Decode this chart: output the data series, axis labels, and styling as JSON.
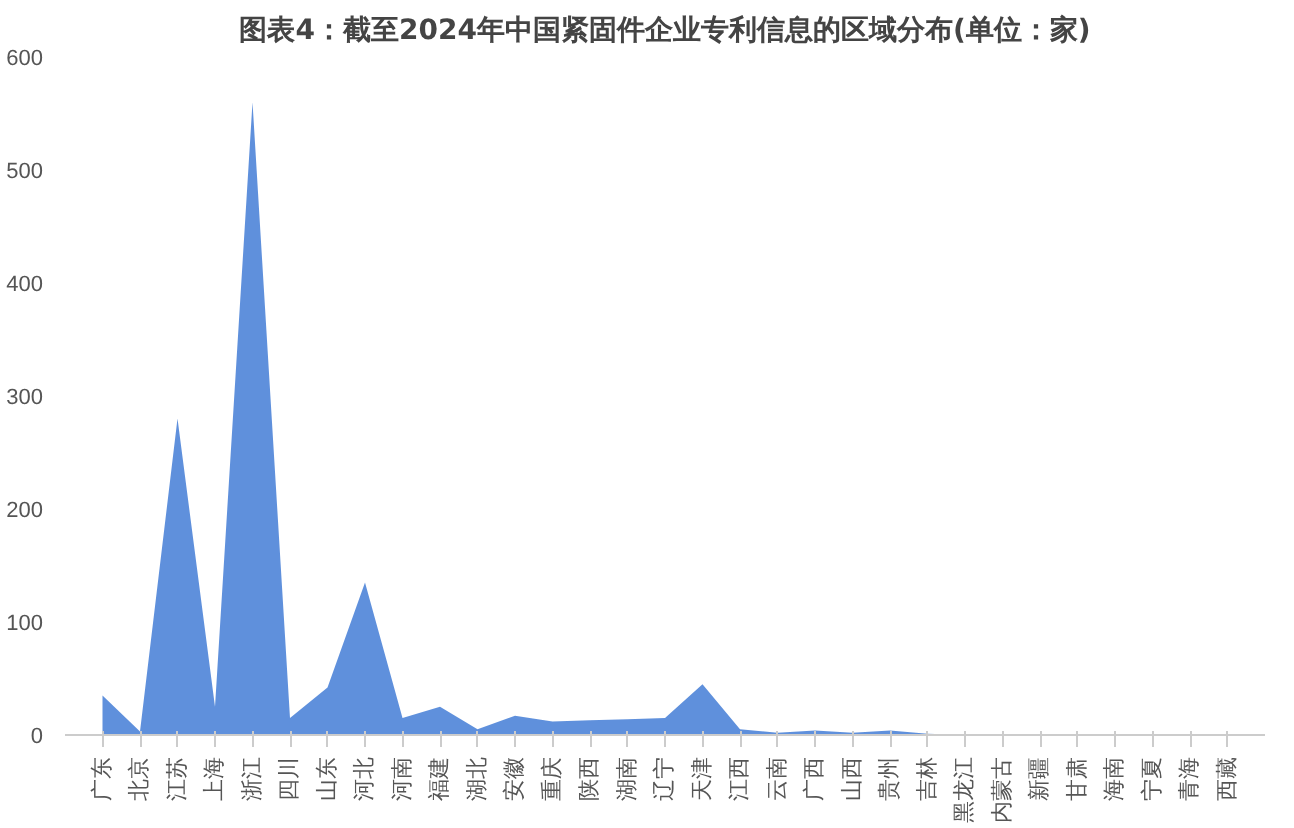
{
  "chart_data": {
    "type": "area",
    "title": "图表4：截至2024年中国紧固件企业专利信息的区域分布(单位：家)",
    "categories": [
      "广东",
      "北京",
      "江苏",
      "上海",
      "浙江",
      "四川",
      "山东",
      "河北",
      "河南",
      "福建",
      "湖北",
      "安徽",
      "重庆",
      "陕西",
      "湖南",
      "辽宁",
      "天津",
      "江西",
      "云南",
      "广西",
      "山西",
      "贵州",
      "吉林",
      "黑龙江",
      "内蒙古",
      "新疆",
      "甘肃",
      "海南",
      "宁夏",
      "青海",
      "西藏"
    ],
    "values": [
      35,
      3,
      280,
      25,
      560,
      15,
      42,
      135,
      15,
      25,
      5,
      17,
      12,
      13,
      14,
      15,
      45,
      5,
      2,
      4,
      2,
      4,
      1,
      0,
      0,
      0,
      0,
      0,
      0,
      0,
      0
    ],
    "color": "#2a6bd0",
    "ylim": [
      0,
      600
    ],
    "yticks": [
      0,
      100,
      200,
      300,
      400,
      500,
      600
    ],
    "grid": false
  }
}
